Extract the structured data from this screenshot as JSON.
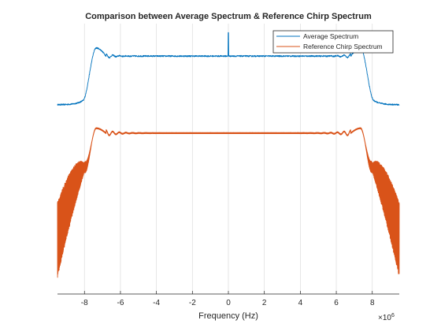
{
  "chart_data": {
    "type": "line",
    "title": "Comparison between Average Spectrum & Reference Chirp Spectrum",
    "xlabel": "Frequency (Hz)",
    "ylabel": "",
    "x_exponent_label": "×10",
    "x_exponent_power": "6",
    "xlim": [
      -9.5,
      9.5
    ],
    "ylim": [
      0,
      1
    ],
    "xticks": [
      -8,
      -6,
      -4,
      -2,
      0,
      2,
      4,
      6,
      8
    ],
    "xtick_labels": [
      "-8",
      "-6",
      "-4",
      "-2",
      "0",
      "2",
      "4",
      "6",
      "8"
    ],
    "yaxis_visible": false,
    "grid": "x",
    "legend_position": "top-right",
    "series": [
      {
        "name": "Average Spectrum",
        "color": "#0072BD",
        "baseline": 0.7,
        "plateau": 0.88,
        "edge_peak": 0.91,
        "spike_x": 0,
        "spike_peak": 0.967
      },
      {
        "name": "Reference Chirp Spectrum",
        "color": "#D95319",
        "baseline": 0.06,
        "plateau": 0.595,
        "edge_peak": 0.613,
        "edge_envelope_low": 0.03,
        "edge_envelope_high": 0.31
      }
    ]
  }
}
